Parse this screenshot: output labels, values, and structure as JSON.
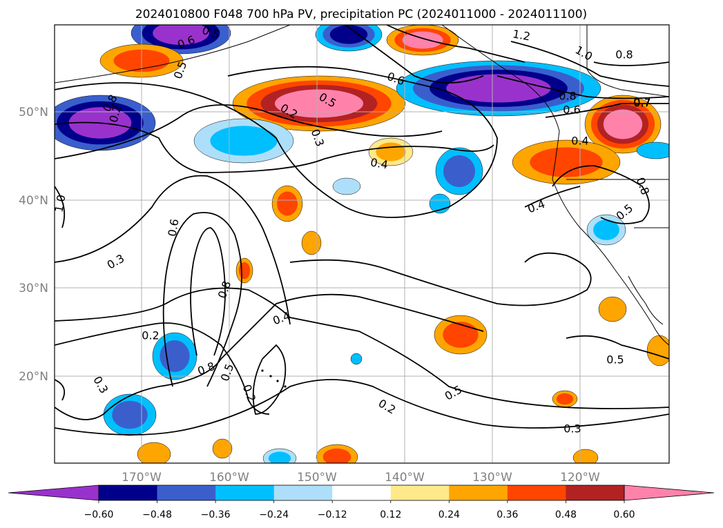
{
  "chart_data": {
    "type": "filled-contour-map",
    "title": "2024010800 F048 700 hPa PV, precipitation PC (2024011000 - 2024011100)",
    "lon_ticks": [
      "170°W",
      "160°W",
      "150°W",
      "140°W",
      "130°W",
      "120°W"
    ],
    "lat_ticks": [
      "50°N",
      "40°N",
      "30°N",
      "20°N"
    ],
    "grid": true,
    "colorbar": {
      "orientation": "horizontal",
      "extend": "both",
      "levels": [
        -0.6,
        -0.48,
        -0.36,
        -0.24,
        -0.12,
        0.12,
        0.24,
        0.36,
        0.48,
        0.6
      ],
      "tick_labels": [
        "−0.60",
        "−0.48",
        "−0.36",
        "−0.24",
        "−0.12",
        "0.12",
        "0.24",
        "0.36",
        "0.48",
        "0.60"
      ],
      "colors": [
        "#9932CC",
        "#00008B",
        "#3A5FCD",
        "#00BFFF",
        "#ADDFFA",
        "#FFFFFF",
        "#FFE98A",
        "#FFA500",
        "#FF4500",
        "#B22222",
        "#FF82AB"
      ]
    },
    "contour_labels": [
      "0.6",
      "0.5",
      "0.5",
      "1.2",
      "1.0",
      "0.8",
      "0.6",
      "0.8",
      "0.6",
      "0.7",
      "0.5",
      "0.2",
      "0.3",
      "0.4",
      "0.4",
      "0.8",
      "0.2",
      "0.5",
      "0.4",
      "1.0",
      "0.8",
      "0.6",
      "0.3",
      "0.2",
      "0.4",
      "0.8",
      "0.8",
      "0.5",
      "0.2",
      "0.3",
      "0.2",
      "0.5",
      "0.3",
      "0.5",
      "0.7"
    ]
  }
}
